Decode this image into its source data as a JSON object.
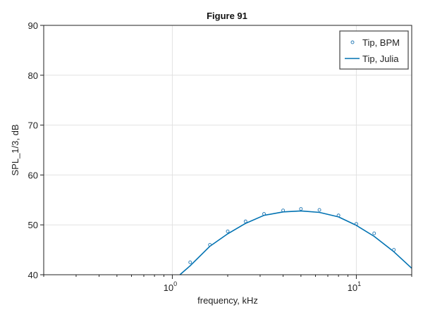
{
  "chart_data": {
    "type": "line",
    "title": "Figure 91",
    "xlabel": "frequency, kHz",
    "ylabel": "SPL_1/3, dB",
    "xscale": "log",
    "xlim": [
      0.2,
      20
    ],
    "ylim": [
      40,
      90
    ],
    "yticks": [
      40,
      50,
      60,
      70,
      80,
      90
    ],
    "xticks_major": [
      {
        "value": 1,
        "base": "10",
        "exp": "0"
      },
      {
        "value": 10,
        "base": "10",
        "exp": "1"
      }
    ],
    "grid": true,
    "legend_position": "top-right",
    "series": [
      {
        "name": "Tip, BPM",
        "style": "markers",
        "color": "#1f77b4",
        "x": [
          1.25,
          1.6,
          2.0,
          2.5,
          3.15,
          4.0,
          5.0,
          6.3,
          8.0,
          10.0,
          12.5,
          16.0
        ],
        "y": [
          42.5,
          46.0,
          48.7,
          50.7,
          52.2,
          52.9,
          53.2,
          53.0,
          51.9,
          50.2,
          48.3,
          45.0
        ]
      },
      {
        "name": "Tip, Julia",
        "style": "line",
        "color": "#0072b2",
        "x": [
          1.1,
          1.25,
          1.6,
          2.0,
          2.5,
          3.15,
          4.0,
          5.0,
          6.3,
          8.0,
          10.0,
          12.5,
          16.0,
          20.0
        ],
        "y": [
          40.0,
          41.8,
          45.7,
          48.2,
          50.3,
          51.9,
          52.6,
          52.8,
          52.5,
          51.6,
          49.9,
          47.7,
          44.6,
          41.3
        ]
      }
    ]
  }
}
